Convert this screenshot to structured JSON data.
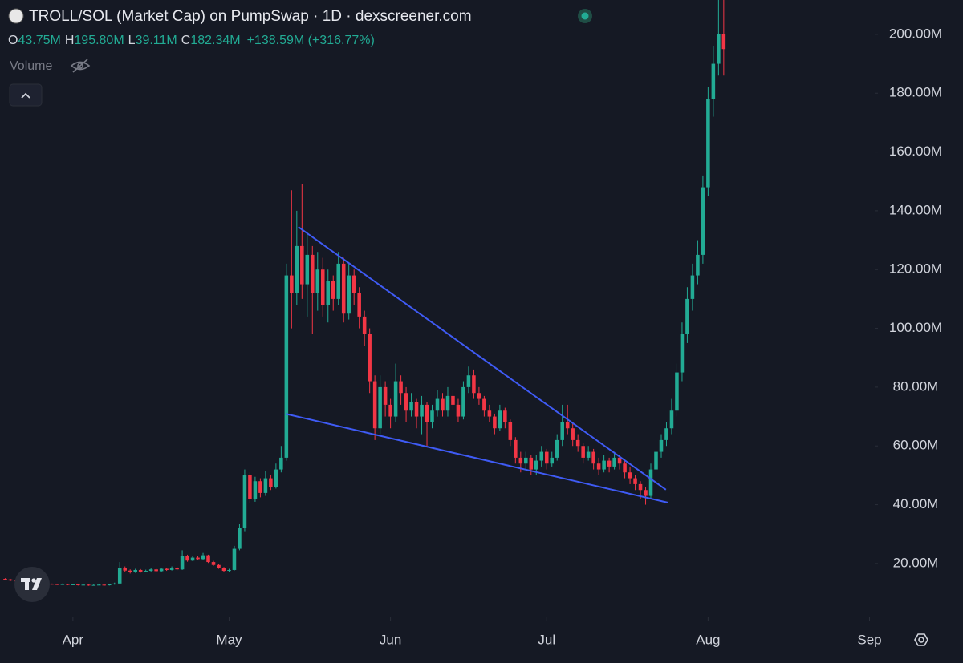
{
  "chart_data": {
    "type": "candlestick",
    "title": "TROLL/SOL (Market Cap) on PumpSwap · 1D · dexscreener.com",
    "ohlc_header": [
      {
        "label": "O",
        "value": "43.75M"
      },
      {
        "label": "H",
        "value": "195.80M"
      },
      {
        "label": "L",
        "value": "39.11M"
      },
      {
        "label": "C",
        "value": "182.34M"
      }
    ],
    "change": "+138.59M (+316.77%)",
    "volume_label": "Volume",
    "colors": {
      "up": "#22ab94",
      "down": "#f23645",
      "trendline": "#3f5bf5"
    },
    "ylim": [
      1.7,
      211.7
    ],
    "yticks": [
      {
        "value": 20,
        "label": "20.00M"
      },
      {
        "value": 40,
        "label": "40.00M"
      },
      {
        "value": 60,
        "label": "60.00M"
      },
      {
        "value": 80,
        "label": "80.00M"
      },
      {
        "value": 100,
        "label": "100.00M"
      },
      {
        "value": 120,
        "label": "120.00M"
      },
      {
        "value": 140,
        "label": "140.00M"
      },
      {
        "value": 160,
        "label": "160.00M"
      },
      {
        "value": 180,
        "label": "180.00M"
      },
      {
        "value": 200,
        "label": "200.00M"
      }
    ],
    "xlim": [
      -1,
      167
    ],
    "xticks": [
      {
        "value": 13,
        "label": "Apr"
      },
      {
        "value": 43,
        "label": "May"
      },
      {
        "value": 74,
        "label": "Jun"
      },
      {
        "value": 104,
        "label": "Jul"
      },
      {
        "value": 135,
        "label": "Aug"
      },
      {
        "value": 166,
        "label": "Sep"
      }
    ],
    "candles": [
      [
        14.8,
        15.0,
        14.4,
        14.6
      ],
      [
        14.6,
        14.8,
        14.0,
        14.2
      ],
      [
        14.2,
        14.4,
        13.8,
        14.0
      ],
      [
        14.0,
        14.2,
        13.6,
        13.8
      ],
      [
        13.8,
        14.0,
        13.3,
        13.5
      ],
      [
        13.5,
        13.7,
        13.2,
        13.4
      ],
      [
        13.4,
        13.6,
        13.0,
        13.2
      ],
      [
        13.2,
        13.5,
        13.0,
        13.3
      ],
      [
        13.3,
        13.4,
        12.9,
        13.1
      ],
      [
        13.1,
        13.2,
        12.8,
        13.0
      ],
      [
        13.0,
        13.1,
        12.7,
        12.9
      ],
      [
        12.9,
        13.2,
        12.8,
        13.0
      ],
      [
        13.0,
        13.1,
        12.6,
        12.8
      ],
      [
        12.8,
        13.1,
        12.7,
        12.9
      ],
      [
        12.9,
        13.0,
        12.5,
        12.7
      ],
      [
        12.7,
        13.0,
        12.6,
        12.8
      ],
      [
        12.8,
        12.9,
        12.4,
        12.6
      ],
      [
        12.6,
        12.9,
        12.5,
        12.7
      ],
      [
        12.7,
        13.0,
        12.6,
        12.8
      ],
      [
        12.8,
        12.9,
        12.4,
        12.6
      ],
      [
        12.6,
        13.1,
        12.5,
        12.9
      ],
      [
        12.9,
        13.5,
        12.8,
        13.2
      ],
      [
        13.2,
        20.5,
        13.0,
        18.5
      ],
      [
        18.5,
        19.0,
        17.2,
        17.6
      ],
      [
        17.6,
        18.0,
        16.6,
        17.0
      ],
      [
        17.0,
        18.2,
        16.8,
        17.8
      ],
      [
        17.8,
        18.1,
        16.9,
        17.2
      ],
      [
        17.2,
        17.9,
        17.0,
        17.5
      ],
      [
        17.5,
        18.4,
        17.2,
        18.0
      ],
      [
        18.0,
        18.2,
        17.1,
        17.4
      ],
      [
        17.4,
        18.6,
        17.2,
        18.2
      ],
      [
        18.2,
        18.5,
        17.5,
        17.8
      ],
      [
        17.8,
        19.0,
        17.6,
        18.6
      ],
      [
        18.6,
        18.9,
        17.7,
        18.0
      ],
      [
        18.0,
        24.5,
        17.8,
        22.5
      ],
      [
        22.5,
        23.0,
        20.6,
        21.0
      ],
      [
        21.0,
        22.6,
        20.8,
        22.0
      ],
      [
        22.0,
        22.5,
        21.2,
        21.5
      ],
      [
        21.5,
        23.6,
        21.3,
        22.8
      ],
      [
        22.8,
        23.0,
        20.2,
        20.5
      ],
      [
        20.5,
        20.9,
        19.2,
        19.5
      ],
      [
        19.5,
        19.8,
        18.2,
        18.5
      ],
      [
        18.5,
        18.8,
        17.2,
        17.5
      ],
      [
        17.5,
        18.2,
        17.1,
        17.8
      ],
      [
        17.8,
        26.0,
        17.6,
        25.0
      ],
      [
        25.0,
        33.5,
        24.5,
        32.0
      ],
      [
        32.0,
        52.0,
        31.0,
        50.0
      ],
      [
        50.0,
        51.0,
        40.5,
        42.0
      ],
      [
        42.0,
        49.5,
        41.0,
        48.0
      ],
      [
        48.0,
        49.0,
        42.5,
        44.0
      ],
      [
        44.0,
        51.5,
        43.0,
        49.0
      ],
      [
        49.0,
        50.0,
        45.0,
        46.0
      ],
      [
        46.0,
        54.0,
        45.5,
        52.0
      ],
      [
        52.0,
        60.0,
        51.0,
        56.0
      ],
      [
        56,
        122,
        55,
        118
      ],
      [
        118,
        147,
        100,
        112
      ],
      [
        112,
        140,
        108,
        128
      ],
      [
        128,
        149,
        110,
        115
      ],
      [
        115,
        132,
        104,
        125
      ],
      [
        125,
        128,
        98,
        112
      ],
      [
        112,
        126,
        106,
        120
      ],
      [
        120,
        124,
        104,
        108
      ],
      [
        108,
        120,
        102,
        116
      ],
      [
        116,
        118,
        106,
        110
      ],
      [
        110,
        126,
        108,
        122
      ],
      [
        122,
        124,
        102,
        105
      ],
      [
        105,
        122,
        103,
        118
      ],
      [
        118,
        120,
        108,
        112
      ],
      [
        112,
        114,
        100,
        104
      ],
      [
        104,
        106,
        94,
        98
      ],
      [
        98,
        100,
        78,
        82
      ],
      [
        82,
        84,
        62,
        66
      ],
      [
        66,
        84,
        64,
        80
      ],
      [
        80,
        82,
        70,
        74
      ],
      [
        74,
        76,
        66,
        70
      ],
      [
        70,
        88,
        68,
        82
      ],
      [
        82,
        84,
        74,
        78
      ],
      [
        78,
        80,
        68,
        72
      ],
      [
        72,
        78,
        70,
        75
      ],
      [
        75,
        76,
        66,
        70
      ],
      [
        70,
        77,
        64,
        74
      ],
      [
        74,
        75,
        60,
        68
      ],
      [
        68,
        74,
        66,
        72
      ],
      [
        72,
        79,
        70,
        76
      ],
      [
        76,
        78,
        70,
        72
      ],
      [
        72,
        80,
        70,
        77
      ],
      [
        77,
        79,
        72,
        74
      ],
      [
        74,
        76,
        68,
        70
      ],
      [
        70,
        82,
        69,
        80
      ],
      [
        80,
        87,
        78,
        84
      ],
      [
        84,
        86,
        76,
        78
      ],
      [
        78,
        80,
        74,
        76
      ],
      [
        76,
        77,
        70,
        72
      ],
      [
        72,
        74,
        68,
        70
      ],
      [
        70,
        71,
        64,
        66
      ],
      [
        66,
        74,
        65,
        72
      ],
      [
        72,
        73,
        66,
        68
      ],
      [
        68,
        69,
        60,
        62
      ],
      [
        62,
        63,
        54,
        56
      ],
      [
        56,
        58,
        51,
        54
      ],
      [
        54,
        58,
        52,
        56
      ],
      [
        56,
        57,
        50,
        52
      ],
      [
        52,
        57,
        50,
        55
      ],
      [
        55,
        60,
        53,
        58
      ],
      [
        58,
        59,
        52,
        54
      ],
      [
        54,
        58,
        53,
        56
      ],
      [
        56,
        64,
        55,
        62
      ],
      [
        62,
        74,
        60,
        68
      ],
      [
        68,
        74,
        64,
        66
      ],
      [
        66,
        68,
        60,
        62
      ],
      [
        62,
        64,
        58,
        60
      ],
      [
        60,
        61,
        54,
        56
      ],
      [
        56,
        60,
        55,
        58
      ],
      [
        58,
        59,
        52,
        54
      ],
      [
        54,
        56,
        50,
        52
      ],
      [
        52,
        57,
        51,
        55
      ],
      [
        55,
        56,
        51,
        53
      ],
      [
        53,
        58,
        52,
        56
      ],
      [
        56,
        57,
        52,
        54
      ],
      [
        54,
        55,
        49,
        51
      ],
      [
        51,
        53,
        47,
        49
      ],
      [
        49,
        50,
        45,
        47
      ],
      [
        47,
        48,
        42,
        45
      ],
      [
        45,
        46,
        40,
        43
      ],
      [
        43,
        54,
        42,
        52
      ],
      [
        52,
        60,
        50,
        58
      ],
      [
        58,
        64,
        56,
        62
      ],
      [
        62,
        68,
        60,
        66
      ],
      [
        66,
        76,
        64,
        72
      ],
      [
        72,
        88,
        70,
        85
      ],
      [
        85,
        102,
        82,
        98
      ],
      [
        98,
        114,
        95,
        110
      ],
      [
        110,
        122,
        106,
        118
      ],
      [
        118,
        130,
        115,
        125
      ],
      [
        125,
        152,
        122,
        148
      ],
      [
        148,
        182,
        145,
        178
      ],
      [
        178,
        196,
        172,
        190
      ],
      [
        190,
        212,
        186,
        200
      ],
      [
        200,
        215,
        186,
        195
      ]
    ],
    "trendlines": [
      {
        "x": [
          56.3,
          126.9
        ],
        "y": [
          134.5,
          45.1
        ]
      },
      {
        "x": [
          53.9,
          127.3
        ],
        "y": [
          70.9,
          40.7
        ]
      }
    ]
  }
}
